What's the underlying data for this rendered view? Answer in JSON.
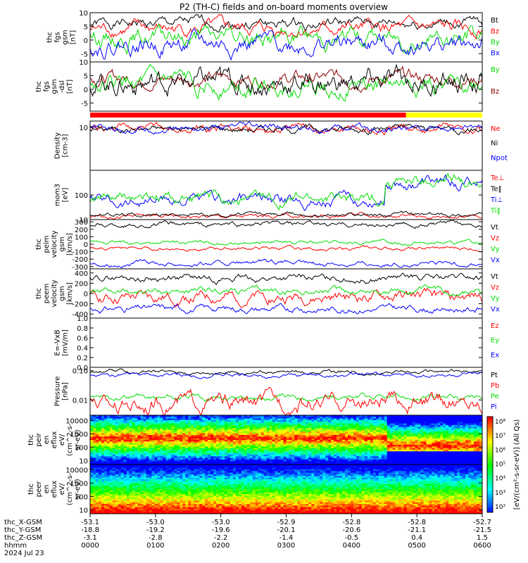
{
  "title": "P2 (TH-C) fields and on-board moments overview",
  "colors": {
    "black": "#000000",
    "red": "#ff0000",
    "green": "#00dd00",
    "blue": "#0000ff",
    "darkred": "#8b0000",
    "yellow": "#ffff00",
    "lightgreen": "#00ee00"
  },
  "chart_data": [
    {
      "id": "fgs-gsm",
      "type": "line",
      "ylabel": [
        "thc",
        "fgs",
        "gsm",
        "[nT]"
      ],
      "ylim": [
        -8,
        10
      ],
      "yticks": [
        "10",
        "5",
        "0",
        "-5"
      ],
      "ytick_values": [
        10,
        5,
        0,
        -5
      ],
      "series": [
        {
          "name": "Bt",
          "color": "black",
          "base": 6,
          "amp": 1.2
        },
        {
          "name": "Bz",
          "color": "red",
          "base": 4,
          "amp": 1.5
        },
        {
          "name": "By",
          "color": "green",
          "base": 1,
          "amp": 2
        },
        {
          "name": "Bx",
          "color": "blue",
          "base": -1.5,
          "amp": 2
        }
      ],
      "legend": [
        "Bt",
        "Bz",
        "By",
        "Bx"
      ]
    },
    {
      "id": "fgs-sm",
      "type": "line",
      "ylabel": [
        "thc",
        "fgs",
        "gsm",
        "-dsl",
        "[nT]"
      ],
      "ylim": [
        -8,
        10
      ],
      "yticks": [
        "10",
        "5",
        "0",
        "-5"
      ],
      "ytick_values": [
        10,
        5,
        0,
        -5
      ],
      "series": [
        {
          "name": "Bz",
          "color": "darkred",
          "base": 4,
          "amp": 1.5
        },
        {
          "name": "By",
          "color": "green",
          "base": 1.5,
          "amp": 2
        },
        {
          "name": "Bt",
          "color": "black",
          "base": 2.5,
          "amp": 2.5
        }
      ],
      "legend": [
        "By",
        "Bz"
      ]
    },
    {
      "id": "mode-bar",
      "type": "bar",
      "segments": [
        {
          "from": "0000",
          "to": "0450",
          "color": "red"
        },
        {
          "from": "0450",
          "to": "0600",
          "color": "yellow"
        }
      ]
    },
    {
      "id": "density",
      "type": "line",
      "ylabel": [
        "Density",
        "[cm-3]"
      ],
      "ylim": [
        0.1,
        20
      ],
      "scale": "log",
      "yticks": [
        "10"
      ],
      "ytick_values": [
        10
      ],
      "series": [
        {
          "name": "Ne",
          "color": "red",
          "base": 9,
          "amp": 0.25
        },
        {
          "name": "Ni",
          "color": "black",
          "base": 9,
          "amp": 0.2
        },
        {
          "name": "Npot",
          "color": "blue",
          "base": 9,
          "amp": 0.2
        }
      ],
      "legend": [
        "Ne",
        "Ni",
        "Npot"
      ]
    },
    {
      "id": "temperature",
      "type": "line",
      "ylabel": [
        "mom3",
        "[eV]"
      ],
      "ylim": [
        10,
        1000
      ],
      "scale": "log",
      "yticks": [
        "100",
        "10"
      ],
      "ytick_values": [
        100,
        10
      ],
      "series": [
        {
          "name": "Te⊥",
          "color": "red",
          "base": 14,
          "amp": 0.1
        },
        {
          "name": "Te‖",
          "color": "black",
          "base": 16,
          "amp": 0.1
        },
        {
          "name": "Ti⊥",
          "color": "blue",
          "base": 60,
          "amp": 0.3
        },
        {
          "name": "Ti‖",
          "color": "green",
          "base": 70,
          "amp": 0.3
        }
      ],
      "legend": [
        "Te⊥",
        "Te‖",
        "Ti⊥",
        "Ti‖"
      ]
    },
    {
      "id": "peim-velocity",
      "type": "line",
      "ylabel": [
        "thc",
        "peim",
        "velocity",
        "gsm",
        "[km/s]"
      ],
      "ylim": [
        -330,
        330
      ],
      "yticks": [
        "300",
        "200",
        "100",
        "0",
        "-100",
        "-200",
        "-300"
      ],
      "ytick_values": [
        300,
        200,
        100,
        0,
        -100,
        -200,
        -300
      ],
      "series": [
        {
          "name": "Vt",
          "color": "black",
          "base": 260,
          "amp": 20
        },
        {
          "name": "Vz",
          "color": "red",
          "base": -60,
          "amp": 15
        },
        {
          "name": "Vy",
          "color": "green",
          "base": 20,
          "amp": 15
        },
        {
          "name": "Vx",
          "color": "blue",
          "base": -260,
          "amp": 20
        }
      ],
      "legend": [
        "Vt",
        "Vz",
        "Vy",
        "Vx"
      ]
    },
    {
      "id": "peem-velocity",
      "type": "line",
      "ylabel": [
        "thc",
        "peem",
        "velocity",
        "gsm",
        "[km/s]"
      ],
      "ylim": [
        -480,
        480
      ],
      "yticks": [
        "400",
        "200",
        "0",
        "-200",
        "-400"
      ],
      "ytick_values": [
        400,
        200,
        0,
        -200,
        -400
      ],
      "series": [
        {
          "name": "Vt",
          "color": "black",
          "base": 300,
          "amp": 40
        },
        {
          "name": "Vz",
          "color": "red",
          "base": -80,
          "amp": 70
        },
        {
          "name": "Vy",
          "color": "green",
          "base": 40,
          "amp": 40
        },
        {
          "name": "Vx",
          "color": "blue",
          "base": -300,
          "amp": 40
        }
      ],
      "legend": [
        "Vt",
        "Vz",
        "Vy",
        "Vx"
      ]
    },
    {
      "id": "efield",
      "type": "line",
      "ylabel": [
        "E=-VxB",
        "[mV/m]"
      ],
      "ylim": [
        0,
        1
      ],
      "yticks": [
        "1.0",
        "0.8",
        "0.6",
        "0.4",
        "0.2",
        "0.0"
      ],
      "ytick_values": [
        1,
        0.8,
        0.6,
        0.4,
        0.2,
        0
      ],
      "series": [],
      "legend": [
        "Ez",
        "Ey",
        "Ex"
      ]
    },
    {
      "id": "pressure",
      "type": "line",
      "ylabel": [
        "Pressure",
        "[nPa]"
      ],
      "ylim": [
        0.003,
        0.13
      ],
      "scale": "log",
      "yticks": [
        "0.10",
        "0.01"
      ],
      "ytick_values": [
        0.1,
        0.01
      ],
      "series": [
        {
          "name": "Pt",
          "color": "black",
          "base": 0.09,
          "amp": 0.08
        },
        {
          "name": "Pi",
          "color": "blue",
          "base": 0.07,
          "amp": 0.08
        },
        {
          "name": "Pe",
          "color": "green",
          "base": 0.012,
          "amp": 0.12
        },
        {
          "name": "Pb",
          "color": "red",
          "base": 0.008,
          "amp": 0.35
        }
      ],
      "legend": [
        "Pt",
        "Pb",
        "Pe",
        "Pi"
      ]
    },
    {
      "id": "peir-spec",
      "type": "heatmap",
      "ylabel": [
        "thc",
        "peir",
        "en",
        "eflux",
        "eV/",
        "(cm^2-s-",
        "sr-eV)"
      ],
      "ylim": [
        5,
        25000
      ],
      "scale": "log",
      "yticks": [
        "10000",
        "1000",
        "100",
        "10"
      ],
      "ytick_values": [
        10000,
        1000,
        100,
        10
      ]
    },
    {
      "id": "peer-spec",
      "type": "heatmap",
      "ylabel": [
        "thc",
        "peer",
        "en",
        "eflux",
        "eV/",
        "(cm^2-s-",
        "sr-eV)"
      ],
      "ylim": [
        5,
        25000
      ],
      "scale": "log",
      "yticks": [
        "10000",
        "1000",
        "100",
        "10"
      ],
      "ytick_values": [
        10000,
        1000,
        100,
        10
      ]
    }
  ],
  "colorbar": {
    "labels": [
      "10⁸",
      "10⁷",
      "10⁶",
      "10⁵",
      "10⁴",
      "10³",
      "10²"
    ],
    "title": "[eV/(cm²-s-sr-eV)] (All Qs)"
  },
  "xaxis": {
    "rows": [
      {
        "label": "thc_X-GSM",
        "values": [
          "-53.1",
          "-53.0",
          "-53.0",
          "-52.9",
          "-52.8",
          "-52.8",
          "-52.7"
        ]
      },
      {
        "label": "thc_Y-GSM",
        "values": [
          "-18.8",
          "-19.2",
          "-19.6",
          "-20.1",
          "-20.6",
          "-21.1",
          "-21.5"
        ]
      },
      {
        "label": "thc_Z-GSM",
        "values": [
          "-3.1",
          "-2.8",
          "-2.2",
          "-1.4",
          "-0.5",
          "0.4",
          "1.5"
        ]
      },
      {
        "label": "hhmm",
        "values": [
          "0000",
          "0100",
          "0200",
          "0300",
          "0400",
          "0500",
          "0600"
        ]
      }
    ],
    "date": "2024 Jul 23"
  }
}
